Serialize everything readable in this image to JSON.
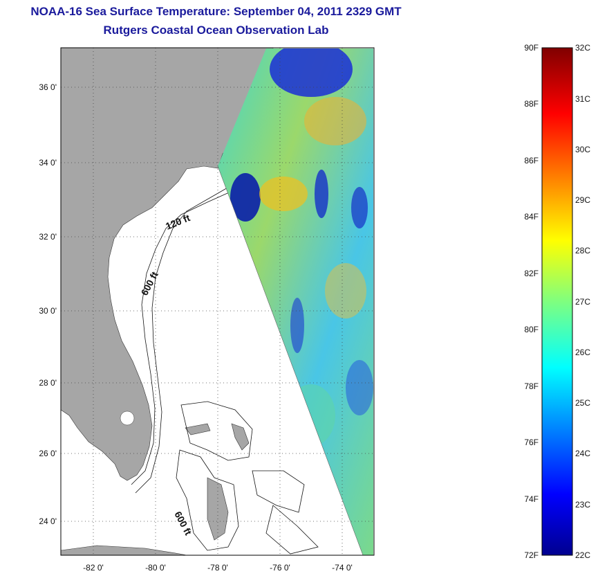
{
  "header": {
    "title": "NOAA-16 Sea Surface Temperature:  September 04, 2011 2329 GMT",
    "subtitle": "Rutgers Coastal Ocean Observation Lab"
  },
  "map": {
    "lon_ticks": [
      "-82 0'",
      "-80 0'",
      "-78 0'",
      "-76 0'",
      "-74 0'"
    ],
    "lat_ticks": [
      "36 0'",
      "34 0'",
      "32 0'",
      "30 0'",
      "28 0'",
      "26 0'",
      "24 0'"
    ],
    "lon_range": [
      -83,
      -73
    ],
    "lat_range": [
      23,
      37
    ],
    "grid": "dotted",
    "land_color": "#a6a6a6",
    "contour_labels": [
      "120 ft",
      "600 ft",
      "600 ft"
    ]
  },
  "colorbar": {
    "fahrenheit_labels": [
      "90F",
      "88F",
      "86F",
      "84F",
      "82F",
      "80F",
      "78F",
      "76F",
      "74F",
      "72F"
    ],
    "celsius_labels": [
      "32C",
      "31C",
      "30C",
      "29C",
      "28C",
      "27C",
      "26C",
      "25C",
      "24C",
      "23C",
      "22C"
    ],
    "range_c": [
      22,
      32
    ],
    "colormap": "jet"
  }
}
